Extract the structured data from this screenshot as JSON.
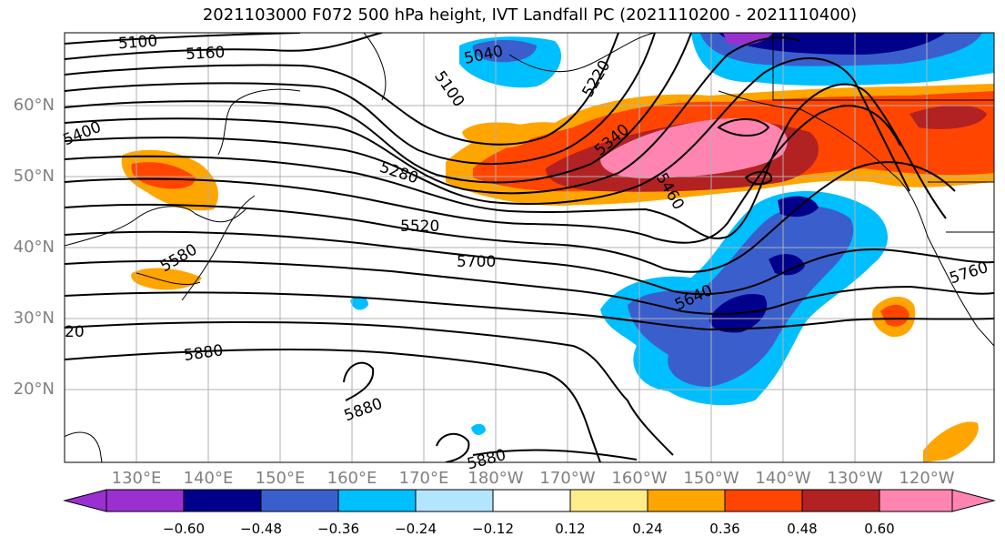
{
  "title": "2021103000 F072 500 hPa height, IVT Landfall PC (2021110200 - 2021110400)",
  "lat_labels": [
    "60°N",
    "50°N",
    "40°N",
    "30°N",
    "20°N"
  ],
  "lon_labels": [
    "130°E",
    "140°E",
    "150°E",
    "160°E",
    "170°E",
    "180°W",
    "170°W",
    "160°W",
    "150°W",
    "140°W",
    "130°W",
    "120°W"
  ],
  "contour_labels": [
    "5100",
    "5160",
    "5040",
    "5100",
    "5220",
    "5400",
    "5340",
    "5280",
    "5460",
    "5520",
    "5580",
    "5700",
    "5640",
    "5760",
    "20",
    "5880",
    "5880",
    "5880"
  ],
  "colorbar": {
    "ticks": [
      "−0.60",
      "−0.48",
      "−0.36",
      "−0.24",
      "−0.12",
      "0.12",
      "0.24",
      "0.36",
      "0.48",
      "0.60"
    ],
    "colors": [
      "#9b30d0",
      "#00008b",
      "#3a5fcd",
      "#00bfff",
      "#b3e5ff",
      "#ffffff",
      "#ffec8b",
      "#ffa500",
      "#ff4500",
      "#b22222",
      "#ff85b0"
    ]
  },
  "palette": {
    "land": "#ffffff",
    "contour": "#000000",
    "grid": "#b0b0b0",
    "pink": "#ff85b0",
    "darkred": "#b22222",
    "red": "#ff4500",
    "orange": "#ffa500",
    "yellow": "#ffec8b",
    "lightblue": "#b3e5ff",
    "cyan": "#00bfff",
    "blue": "#3a5fcd",
    "navy": "#00008b",
    "purple": "#9b30d0"
  }
}
